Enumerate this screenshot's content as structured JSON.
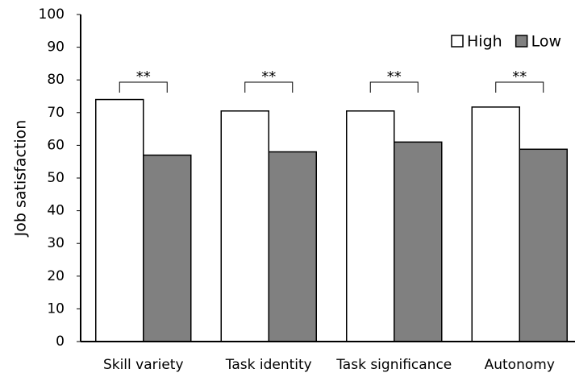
{
  "chart_data": {
    "type": "bar",
    "y_label": "Job satisfaction",
    "categories": [
      "Skill variety",
      "Task identity",
      "Task significance",
      "Autonomy"
    ],
    "series": [
      {
        "name": "High",
        "color": "#ffffff",
        "values": [
          74,
          70.5,
          70.5,
          71.7
        ]
      },
      {
        "name": "Low",
        "color": "#808080",
        "values": [
          57,
          58,
          61,
          58.8
        ]
      }
    ],
    "annotations": [
      "**",
      "**",
      "**",
      "**"
    ],
    "ylim": [
      0,
      100
    ],
    "yticks": [
      0,
      10,
      20,
      30,
      40,
      50,
      60,
      70,
      80,
      90,
      100
    ],
    "grid": false,
    "legend": "top-right"
  }
}
